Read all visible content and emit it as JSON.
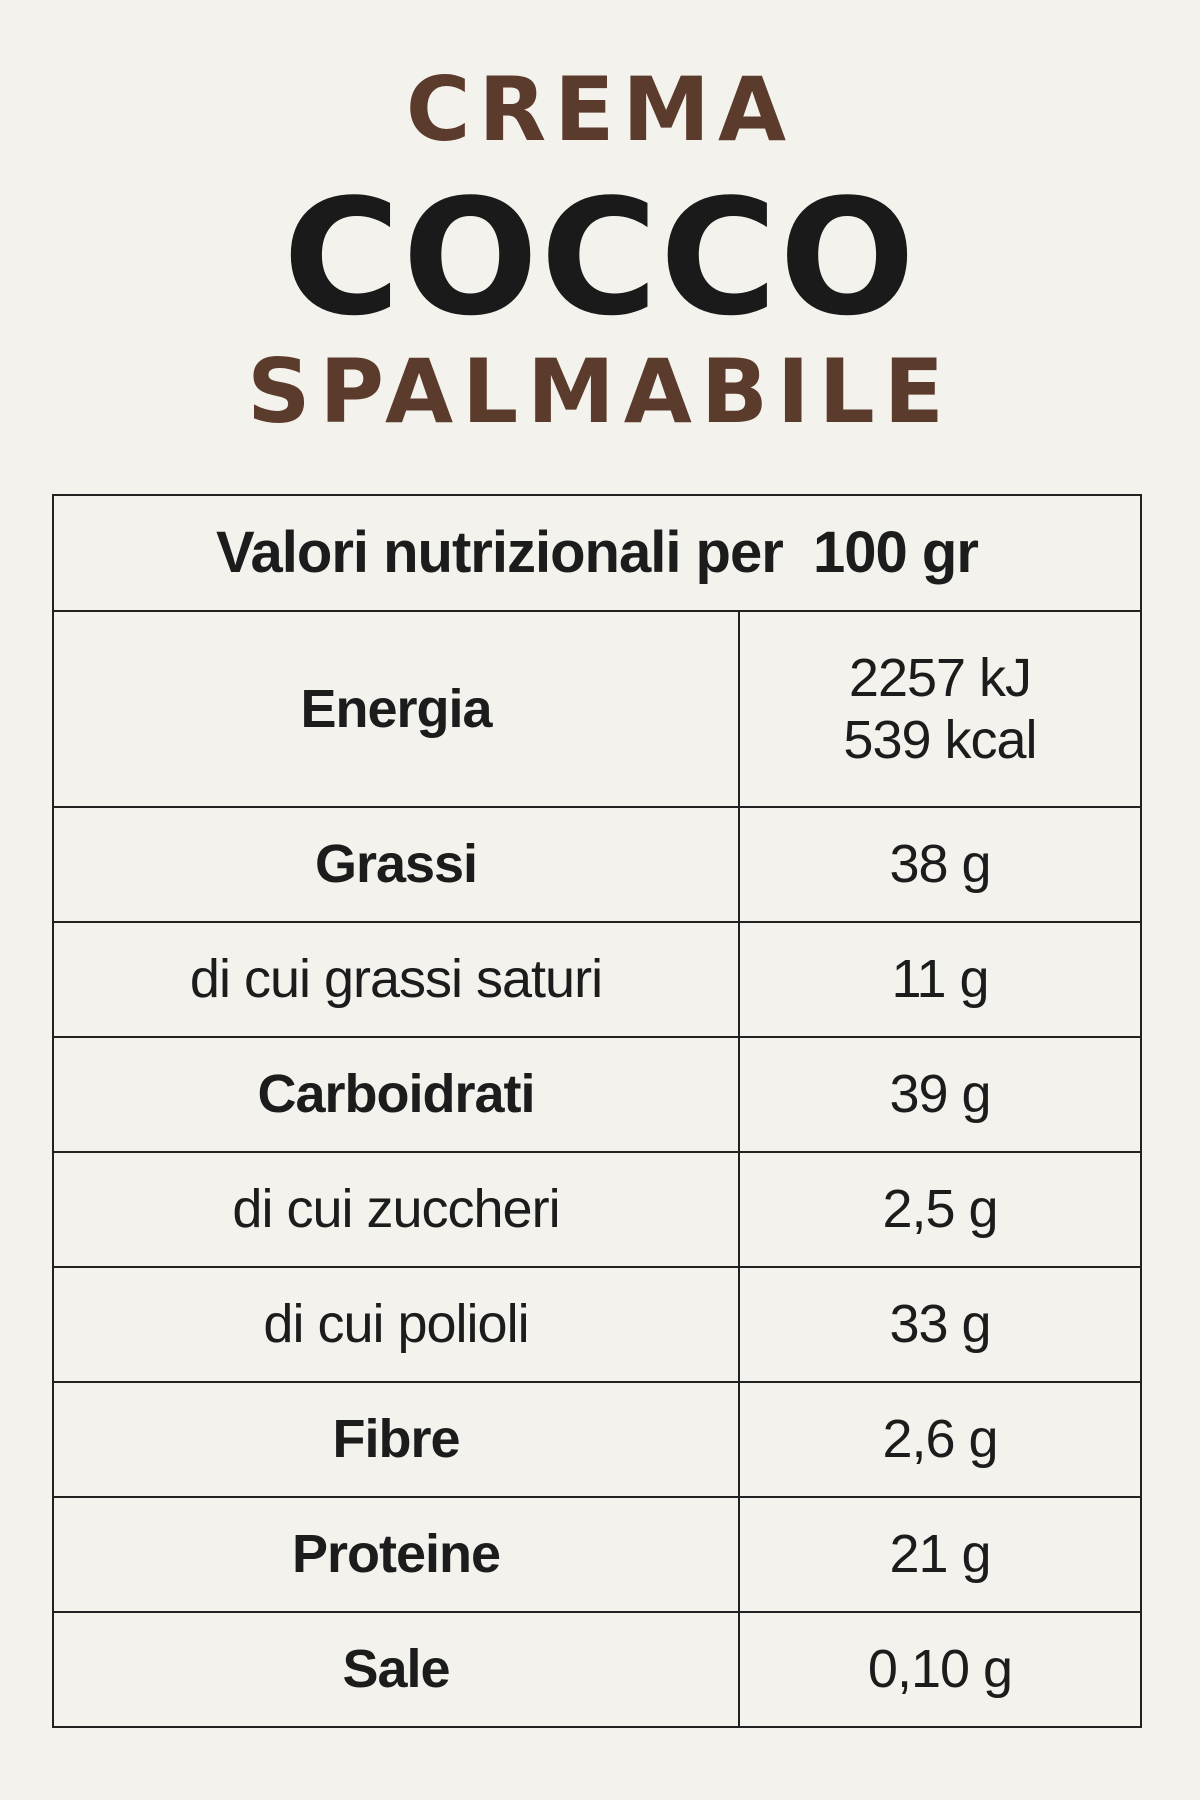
{
  "header": {
    "line1": "CREMA",
    "line2": "COCCO",
    "line3": "SPALMABILE"
  },
  "table": {
    "title": "Valori nutrizionali per  100 gr",
    "rows": [
      [
        "Energia",
        [
          "2257 kJ",
          "539 kcal"
        ]
      ],
      [
        "Grassi",
        "38 g"
      ],
      [
        "di cui grassi saturi",
        "11 g"
      ],
      [
        "Carboidrati",
        "39 g"
      ],
      [
        "di cui zuccheri",
        "2,5 g"
      ],
      [
        "di cui polioli",
        "33 g"
      ],
      [
        "Fibre",
        "2,6 g"
      ],
      [
        "Proteine",
        "21 g"
      ],
      [
        "Sale",
        "0,10 g"
      ]
    ]
  }
}
